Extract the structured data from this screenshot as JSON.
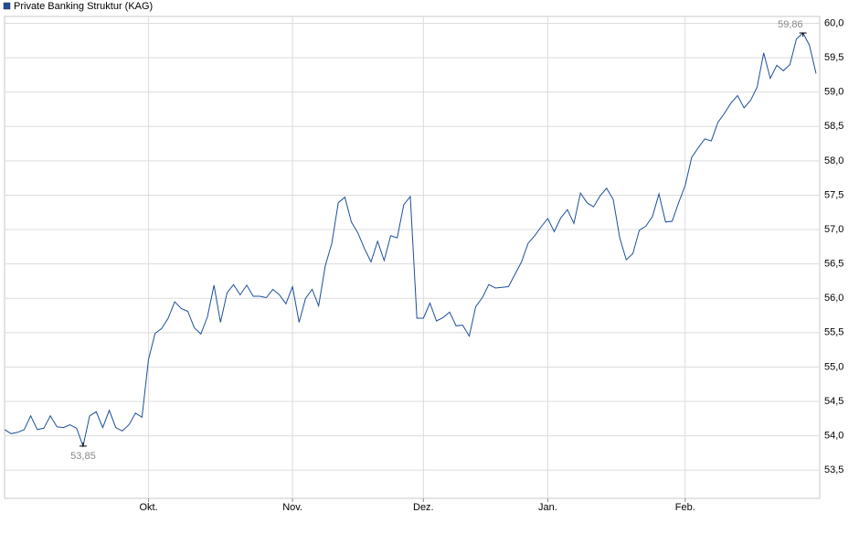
{
  "chart_data": {
    "type": "line",
    "series": [
      {
        "name": "Private Banking Struktur (KAG)",
        "color": "#1c4f9c",
        "values": [
          54.09,
          54.03,
          54.05,
          54.09,
          54.29,
          54.09,
          54.11,
          54.29,
          54.13,
          54.12,
          54.16,
          54.11,
          53.85,
          54.29,
          54.35,
          54.12,
          54.37,
          54.12,
          54.07,
          54.16,
          54.33,
          54.27,
          55.11,
          55.49,
          55.56,
          55.71,
          55.95,
          55.85,
          55.81,
          55.57,
          55.48,
          55.73,
          56.19,
          55.65,
          56.08,
          56.2,
          56.05,
          56.19,
          56.03,
          56.03,
          56.01,
          56.13,
          56.05,
          55.92,
          56.17,
          55.65,
          56.0,
          56.13,
          55.89,
          56.47,
          56.8,
          57.39,
          57.47,
          57.11,
          56.95,
          56.72,
          56.53,
          56.83,
          56.55,
          56.91,
          56.88,
          57.36,
          57.48,
          55.71,
          55.71,
          55.93,
          55.67,
          55.72,
          55.8,
          55.6,
          55.61,
          55.45,
          55.88,
          56.01,
          56.2,
          56.15,
          56.16,
          56.17,
          56.35,
          56.53,
          56.8,
          56.91,
          57.04,
          57.16,
          56.97,
          57.17,
          57.29,
          57.09,
          57.53,
          57.39,
          57.33,
          57.49,
          57.6,
          57.44,
          56.88,
          56.56,
          56.65,
          56.99,
          57.05,
          57.19,
          57.52,
          57.11,
          57.12,
          57.39,
          57.64,
          58.05,
          58.19,
          58.32,
          58.29,
          58.56,
          58.69,
          58.84,
          58.95,
          58.77,
          58.88,
          59.07,
          59.57,
          59.2,
          59.39,
          59.31,
          59.4,
          59.77,
          59.86,
          59.68,
          59.27
        ]
      }
    ],
    "annotations": [
      {
        "label": "59,86",
        "value": 59.86,
        "index": 122,
        "position": "above"
      },
      {
        "label": "53,85",
        "value": 53.85,
        "index": 12,
        "position": "below"
      }
    ],
    "xlim": [
      0,
      124
    ],
    "xticks": [
      {
        "value": 22,
        "label": "Okt."
      },
      {
        "value": 44,
        "label": "Nov."
      },
      {
        "value": 64,
        "label": "Dez."
      },
      {
        "value": 83,
        "label": "Jan."
      },
      {
        "value": 104,
        "label": "Feb."
      }
    ],
    "ylim": [
      53.09,
      60.1
    ],
    "yticks": [
      {
        "value": 53.5,
        "label": "53,5"
      },
      {
        "value": 54,
        "label": "54,0"
      },
      {
        "value": 54.5,
        "label": "54,5"
      },
      {
        "value": 55,
        "label": "55,0"
      },
      {
        "value": 55.5,
        "label": "55,5"
      },
      {
        "value": 56,
        "label": "56,0"
      },
      {
        "value": 56.5,
        "label": "56,5"
      },
      {
        "value": 57,
        "label": "57,0"
      },
      {
        "value": 57.5,
        "label": "57,5"
      },
      {
        "value": 58,
        "label": "58,0"
      },
      {
        "value": 58.5,
        "label": "58,5"
      },
      {
        "value": 59,
        "label": "59,0"
      },
      {
        "value": 59.5,
        "label": "59,5"
      },
      {
        "value": 60,
        "label": "60,0"
      }
    ],
    "grid": true
  }
}
